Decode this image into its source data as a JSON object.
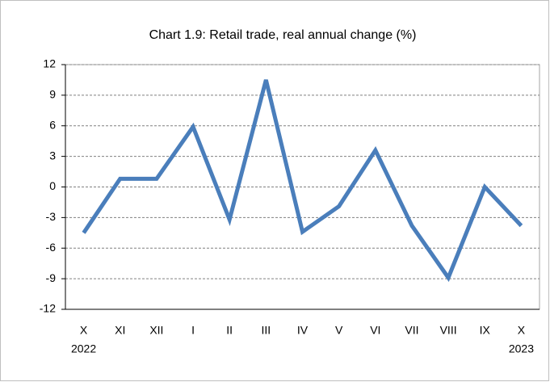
{
  "chart_data": {
    "type": "line",
    "title": "Chart 1.9: Retail trade, real annual change (%)",
    "categories": [
      "X",
      "XI",
      "XII",
      "I",
      "II",
      "III",
      "IV",
      "V",
      "VI",
      "VII",
      "VIII",
      "IX",
      "X"
    ],
    "year_first": "2022",
    "year_last": "2023",
    "series": [
      {
        "name": "Retail trade",
        "color": "#4a7ebb",
        "values": [
          -4.5,
          0.8,
          0.8,
          5.9,
          -3.2,
          10.5,
          -4.4,
          -1.9,
          3.6,
          -3.8,
          -8.9,
          0.0,
          -3.8
        ]
      }
    ],
    "ylim": [
      -12,
      12
    ],
    "yticks": [
      -12,
      -9,
      -6,
      -3,
      0,
      3,
      6,
      9,
      12
    ],
    "grid": true
  }
}
